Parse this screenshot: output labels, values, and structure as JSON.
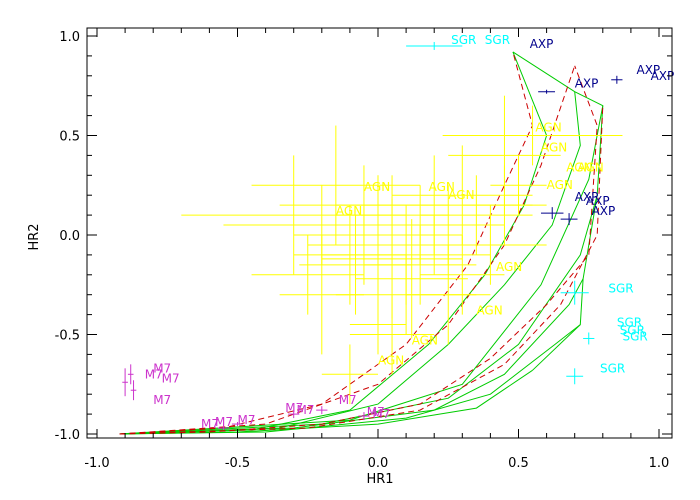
{
  "chart_data": {
    "type": "scatter",
    "xlabel": "HR1",
    "ylabel": "HR2",
    "xlim": [
      -1.0,
      1.0
    ],
    "ylim": [
      -1.0,
      1.0
    ],
    "xticks": [
      -1.0,
      -0.5,
      0.0,
      0.5,
      1.0
    ],
    "yticks": [
      -1.0,
      -0.5,
      0.0,
      0.5,
      1.0
    ],
    "xtick_labels": [
      "-1.0",
      "-0.5",
      "0.0",
      "0.5",
      "1.0"
    ],
    "ytick_labels": [
      "-1.0",
      "-0.5",
      "0.0",
      "0.5",
      "1.0"
    ],
    "grid": false,
    "colors": {
      "AGN": "#ffff00",
      "SGR": "#00ffff",
      "AXP": "#00008b",
      "M7": "#cc33cc",
      "model_green": "#00cc00",
      "model_red": "#cc0000"
    },
    "groups": [
      {
        "label": "AGN",
        "color": "#ffff00",
        "points": [
          {
            "x": 0.05,
            "y": -0.12,
            "ex": 0.25,
            "ey": 0.3
          },
          {
            "x": 0.1,
            "y": -0.1,
            "ex": 0.3,
            "ey": 0.25
          },
          {
            "x": -0.05,
            "y": -0.05,
            "ex": 0.2,
            "ey": 0.2
          },
          {
            "x": 0.15,
            "y": -0.15,
            "ex": 0.2,
            "ey": 0.2
          },
          {
            "x": 0.2,
            "y": -0.05,
            "ex": 0.25,
            "ey": 0.15
          },
          {
            "x": 0.25,
            "y": 0.05,
            "ex": 0.2,
            "ey": 0.2
          },
          {
            "x": 0.0,
            "y": 0.0,
            "ex": 0.3,
            "ey": 0.3
          },
          {
            "x": -0.1,
            "y": -0.1,
            "ex": 0.2,
            "ey": 0.25
          },
          {
            "x": 0.3,
            "y": -0.2,
            "ex": 0.15,
            "ey": 0.2
          },
          {
            "x": -0.2,
            "y": 0.05,
            "ex": 0.35,
            "ey": 0.2
          },
          {
            "x": -0.3,
            "y": 0.1,
            "ex": 0.4,
            "ey": 0.3
          },
          {
            "x": -0.2,
            "y": -0.3,
            "ex": 0.15,
            "ey": 0.3
          },
          {
            "x": -0.25,
            "y": -0.2,
            "ex": 0.2,
            "ey": 0.2
          },
          {
            "x": -0.15,
            "y": 0.25,
            "ex": 0.3,
            "ey": 0.3
          },
          {
            "x": 0.2,
            "y": 0.15,
            "ex": 0.35,
            "ey": 0.25
          },
          {
            "x": 0.35,
            "y": 0.1,
            "ex": 0.2,
            "ey": 0.2
          },
          {
            "x": 0.45,
            "y": 0.15,
            "ex": 0.15,
            "ey": 0.2
          },
          {
            "x": 0.5,
            "y": 0.25,
            "ex": 0.1,
            "ey": 0.15
          },
          {
            "x": 0.55,
            "y": 0.5,
            "ex": 0.32,
            "ey": 0.15
          },
          {
            "x": 0.45,
            "y": 0.4,
            "ex": 0.2,
            "ey": 0.3
          },
          {
            "x": 0.4,
            "y": -0.05,
            "ex": 0.2,
            "ey": 0.2
          },
          {
            "x": 0.1,
            "y": -0.3,
            "ex": 0.25,
            "ey": 0.2
          },
          {
            "x": 0.0,
            "y": -0.45,
            "ex": 0.1,
            "ey": 0.15
          },
          {
            "x": 0.05,
            "y": -0.5,
            "ex": 0.15,
            "ey": 0.2
          },
          {
            "x": -0.1,
            "y": -0.7,
            "ex": 0.1,
            "ey": 0.15
          },
          {
            "x": 0.15,
            "y": 0.05,
            "ex": 0.25,
            "ey": 0.2
          },
          {
            "x": 0.3,
            "y": 0.2,
            "ex": 0.25,
            "ey": 0.25
          },
          {
            "x": -0.05,
            "y": 0.15,
            "ex": 0.3,
            "ey": 0.2
          },
          {
            "x": 0.12,
            "y": -0.22,
            "ex": 0.2,
            "ey": 0.3
          },
          {
            "x": 0.25,
            "y": -0.3,
            "ex": 0.15,
            "ey": 0.25
          },
          {
            "x": -0.08,
            "y": -0.15,
            "ex": 0.2,
            "ey": 0.25
          },
          {
            "x": 0.05,
            "y": 0.1,
            "ex": 0.2,
            "ey": 0.2
          }
        ],
        "annotations": [
          {
            "text": "AGN",
            "x": 0.56,
            "y": 0.52
          },
          {
            "text": "AGN",
            "x": 0.58,
            "y": 0.42
          },
          {
            "text": "AGN",
            "x": 0.67,
            "y": 0.32
          },
          {
            "text": "AGN",
            "x": 0.71,
            "y": 0.32
          },
          {
            "text": "AGN",
            "x": 0.6,
            "y": 0.23
          },
          {
            "text": "AGN",
            "x": -0.05,
            "y": 0.22
          },
          {
            "text": "AGN",
            "x": 0.18,
            "y": 0.22
          },
          {
            "text": "AGN",
            "x": -0.15,
            "y": 0.1
          },
          {
            "text": "AGN",
            "x": 0.25,
            "y": 0.18
          },
          {
            "text": "AGN",
            "x": 0.42,
            "y": -0.18
          },
          {
            "text": "AGN",
            "x": 0.35,
            "y": -0.4
          },
          {
            "text": "AGN",
            "x": 0.12,
            "y": -0.55
          },
          {
            "text": "AGN",
            "x": 0.0,
            "y": -0.65
          }
        ]
      },
      {
        "label": "SGR",
        "color": "#00ffff",
        "points": [
          {
            "x": 0.2,
            "y": 0.95,
            "ex": 0.1,
            "ey": 0.02
          },
          {
            "x": 0.7,
            "y": -0.29,
            "ex": 0.05,
            "ey": 0.06
          },
          {
            "x": 0.75,
            "y": -0.52,
            "ex": 0.02,
            "ey": 0.03
          },
          {
            "x": 0.7,
            "y": -0.71,
            "ex": 0.03,
            "ey": 0.04
          }
        ],
        "annotations": [
          {
            "text": "SGR",
            "x": 0.26,
            "y": 0.96
          },
          {
            "text": "SGR",
            "x": 0.38,
            "y": 0.96
          },
          {
            "text": "SGR",
            "x": 0.82,
            "y": -0.29
          },
          {
            "text": "SGR",
            "x": 0.85,
            "y": -0.46
          },
          {
            "text": "SGR",
            "x": 0.86,
            "y": -0.5
          },
          {
            "text": "SGR",
            "x": 0.87,
            "y": -0.53
          },
          {
            "text": "SGR",
            "x": 0.79,
            "y": -0.69
          }
        ]
      },
      {
        "label": "AXP",
        "color": "#00008b",
        "points": [
          {
            "x": 0.6,
            "y": 0.72,
            "ex": 0.03,
            "ey": 0.01
          },
          {
            "x": 0.85,
            "y": 0.78,
            "ex": 0.02,
            "ey": 0.02
          },
          {
            "x": 0.68,
            "y": 0.08,
            "ex": 0.03,
            "ey": 0.03
          },
          {
            "x": 0.62,
            "y": 0.11,
            "ex": 0.04,
            "ey": 0.03
          }
        ],
        "annotations": [
          {
            "text": "AXP",
            "x": 0.54,
            "y": 0.94
          },
          {
            "text": "AXP",
            "x": 0.7,
            "y": 0.74
          },
          {
            "text": "AXP",
            "x": 0.92,
            "y": 0.81
          },
          {
            "text": "AXP",
            "x": 0.97,
            "y": 0.78
          },
          {
            "text": "AXP",
            "x": 0.7,
            "y": 0.17
          },
          {
            "text": "AXP",
            "x": 0.74,
            "y": 0.15
          },
          {
            "text": "AXP",
            "x": 0.76,
            "y": 0.1
          }
        ]
      },
      {
        "label": "M7",
        "color": "#cc33cc",
        "points": [
          {
            "x": -0.9,
            "y": -0.74,
            "ex": 0.01,
            "ey": 0.07
          },
          {
            "x": -0.88,
            "y": -0.7,
            "ex": 0.01,
            "ey": 0.05
          },
          {
            "x": -0.87,
            "y": -0.78,
            "ex": 0.01,
            "ey": 0.05
          },
          {
            "x": -0.55,
            "y": -0.97,
            "ex": 0.02,
            "ey": 0.01
          },
          {
            "x": -0.5,
            "y": -0.95,
            "ex": 0.02,
            "ey": 0.01
          },
          {
            "x": -0.3,
            "y": -0.9,
            "ex": 0.02,
            "ey": 0.02
          },
          {
            "x": -0.2,
            "y": -0.88,
            "ex": 0.02,
            "ey": 0.02
          },
          {
            "x": -0.05,
            "y": -0.91,
            "ex": 0.02,
            "ey": 0.02
          }
        ],
        "annotations": [
          {
            "text": "M7",
            "x": -0.8,
            "y": -0.69
          },
          {
            "text": "M7",
            "x": -0.83,
            "y": -0.72
          },
          {
            "text": "M7",
            "x": -0.77,
            "y": -0.74
          },
          {
            "text": "M7",
            "x": -0.8,
            "y": -0.85
          },
          {
            "text": "M7",
            "x": -0.63,
            "y": -0.97
          },
          {
            "text": "M7",
            "x": -0.58,
            "y": -0.96
          },
          {
            "text": "M7",
            "x": -0.5,
            "y": -0.95
          },
          {
            "text": "M7",
            "x": -0.33,
            "y": -0.89
          },
          {
            "text": "M7",
            "x": -0.29,
            "y": -0.9
          },
          {
            "text": "M7",
            "x": -0.14,
            "y": -0.85
          },
          {
            "text": "M7",
            "x": -0.04,
            "y": -0.91
          },
          {
            "text": "M7",
            "x": -0.02,
            "y": -0.92
          }
        ]
      }
    ],
    "model_curves": [
      {
        "color": "#00cc00",
        "style": "solid",
        "points": [
          [
            -0.92,
            -1.0
          ],
          [
            -0.5,
            -0.99
          ],
          [
            0.0,
            -0.95
          ],
          [
            0.35,
            -0.87
          ],
          [
            0.55,
            -0.68
          ]
        ]
      },
      {
        "color": "#00cc00",
        "style": "solid",
        "points": [
          [
            -0.92,
            -1.0
          ],
          [
            -0.4,
            -0.99
          ],
          [
            0.1,
            -0.92
          ],
          [
            0.4,
            -0.8
          ],
          [
            0.63,
            -0.55
          ],
          [
            0.72,
            -0.45
          ]
        ]
      },
      {
        "color": "#00cc00",
        "style": "solid",
        "points": [
          [
            -0.92,
            -1.0
          ],
          [
            -0.3,
            -0.97
          ],
          [
            0.2,
            -0.88
          ],
          [
            0.45,
            -0.7
          ],
          [
            0.68,
            -0.35
          ],
          [
            0.73,
            -0.22
          ]
        ]
      },
      {
        "color": "#00cc00",
        "style": "solid",
        "points": [
          [
            -0.92,
            -1.0
          ],
          [
            -0.2,
            -0.95
          ],
          [
            0.25,
            -0.82
          ],
          [
            0.5,
            -0.55
          ],
          [
            0.72,
            -0.1
          ],
          [
            0.78,
            0.2
          ]
        ]
      },
      {
        "color": "#00cc00",
        "style": "solid",
        "points": [
          [
            -0.92,
            -1.0
          ],
          [
            -0.1,
            -0.93
          ],
          [
            0.3,
            -0.75
          ],
          [
            0.58,
            -0.25
          ],
          [
            0.75,
            0.28
          ],
          [
            0.8,
            0.65
          ]
        ]
      },
      {
        "color": "#00cc00",
        "style": "solid",
        "points": [
          [
            -0.92,
            -1.0
          ],
          [
            -0.35,
            -0.97
          ],
          [
            0.0,
            -0.85
          ],
          [
            0.25,
            -0.55
          ],
          [
            0.45,
            -0.25
          ],
          [
            0.62,
            0.05
          ],
          [
            0.72,
            0.45
          ],
          [
            0.7,
            0.72
          ]
        ]
      },
      {
        "color": "#00cc00",
        "style": "solid",
        "points": [
          [
            -0.92,
            -1.0
          ],
          [
            -0.45,
            -0.98
          ],
          [
            -0.1,
            -0.88
          ],
          [
            0.18,
            -0.55
          ],
          [
            0.38,
            -0.2
          ],
          [
            0.52,
            0.15
          ],
          [
            0.6,
            0.5
          ],
          [
            0.48,
            0.92
          ]
        ]
      },
      {
        "color": "#00cc00",
        "style": "solid",
        "points": [
          [
            0.48,
            0.92
          ],
          [
            0.7,
            0.72
          ],
          [
            0.8,
            0.65
          ],
          [
            0.78,
            0.2
          ],
          [
            0.73,
            -0.22
          ],
          [
            0.72,
            -0.45
          ],
          [
            0.55,
            -0.68
          ]
        ]
      },
      {
        "color": "#cc0000",
        "style": "dashed",
        "points": [
          [
            -0.92,
            -1.0
          ],
          [
            -0.6,
            -0.99
          ],
          [
            -0.2,
            -0.95
          ],
          [
            0.15,
            -0.85
          ],
          [
            0.4,
            -0.62
          ],
          [
            0.6,
            -0.35
          ],
          [
            0.75,
            -0.1
          ],
          [
            0.78,
            0.55
          ],
          [
            0.7,
            0.85
          ]
        ]
      },
      {
        "color": "#cc0000",
        "style": "dashed",
        "points": [
          [
            -0.92,
            -1.0
          ],
          [
            -0.55,
            -0.97
          ],
          [
            -0.2,
            -0.85
          ],
          [
            0.1,
            -0.55
          ],
          [
            0.32,
            -0.15
          ],
          [
            0.45,
            0.25
          ],
          [
            0.55,
            0.55
          ],
          [
            0.48,
            0.92
          ]
        ]
      },
      {
        "color": "#cc0000",
        "style": "dashed",
        "points": [
          [
            -0.92,
            -1.0
          ],
          [
            -0.4,
            -0.95
          ],
          [
            0.0,
            -0.75
          ],
          [
            0.25,
            -0.45
          ],
          [
            0.45,
            -0.05
          ],
          [
            0.58,
            0.35
          ],
          [
            0.7,
            0.85
          ]
        ]
      },
      {
        "color": "#cc0000",
        "style": "dashed",
        "points": [
          [
            -0.92,
            -1.0
          ],
          [
            -0.25,
            -0.97
          ],
          [
            0.15,
            -0.88
          ],
          [
            0.45,
            -0.65
          ],
          [
            0.65,
            -0.35
          ],
          [
            0.78,
            0.0
          ],
          [
            0.8,
            0.65
          ]
        ]
      }
    ]
  }
}
